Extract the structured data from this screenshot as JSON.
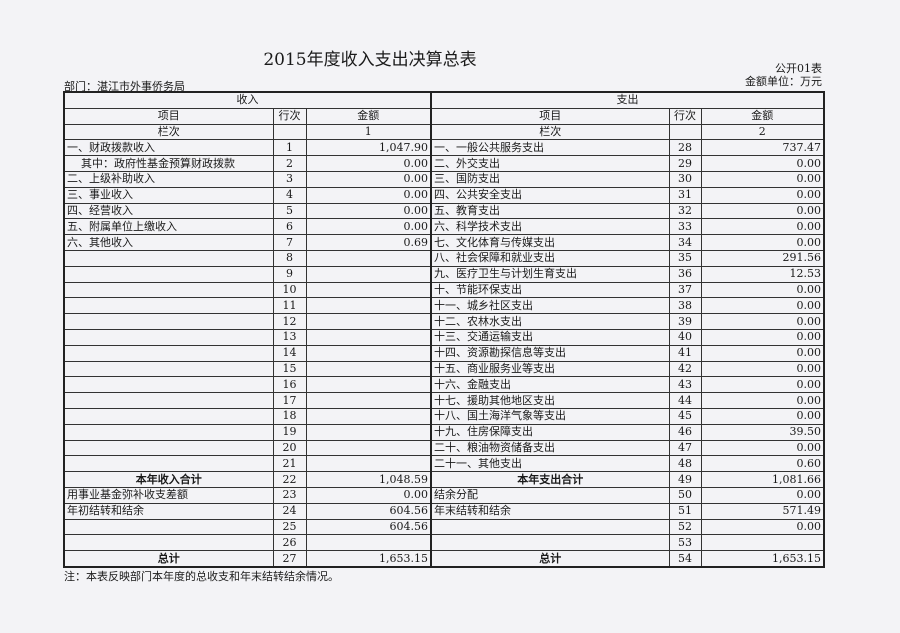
{
  "title": "2015年度收入支出决算总表",
  "form_no": "公开01表",
  "unit": "金额单位：万元",
  "department": "部门：湛江市外事侨务局",
  "header": {
    "income": "收入",
    "expense": "支出",
    "item": "项目",
    "row_no": "行次",
    "amount": "金额",
    "column_label": "栏次",
    "income_col": "1",
    "expense_col": "2"
  },
  "rows": [
    {
      "l_item": "一、财政拨款收入",
      "l_no": "1",
      "l_amt": "1,047.90",
      "r_item": "一、一般公共服务支出",
      "r_no": "28",
      "r_amt": "737.47"
    },
    {
      "l_item": "其中：政府性基金预算财政拨款",
      "l_no": "2",
      "l_amt": "0.00",
      "r_item": "二、外交支出",
      "r_no": "29",
      "r_amt": "0.00",
      "l_indent": true
    },
    {
      "l_item": "二、上级补助收入",
      "l_no": "3",
      "l_amt": "0.00",
      "r_item": "三、国防支出",
      "r_no": "30",
      "r_amt": "0.00"
    },
    {
      "l_item": "三、事业收入",
      "l_no": "4",
      "l_amt": "0.00",
      "r_item": "四、公共安全支出",
      "r_no": "31",
      "r_amt": "0.00"
    },
    {
      "l_item": "四、经营收入",
      "l_no": "5",
      "l_amt": "0.00",
      "r_item": "五、教育支出",
      "r_no": "32",
      "r_amt": "0.00"
    },
    {
      "l_item": "五、附属单位上缴收入",
      "l_no": "6",
      "l_amt": "0.00",
      "r_item": "六、科学技术支出",
      "r_no": "33",
      "r_amt": "0.00"
    },
    {
      "l_item": "六、其他收入",
      "l_no": "7",
      "l_amt": "0.69",
      "r_item": "七、文化体育与传媒支出",
      "r_no": "34",
      "r_amt": "0.00"
    },
    {
      "l_item": "",
      "l_no": "8",
      "l_amt": "",
      "r_item": "八、社会保障和就业支出",
      "r_no": "35",
      "r_amt": "291.56"
    },
    {
      "l_item": "",
      "l_no": "9",
      "l_amt": "",
      "r_item": "九、医疗卫生与计划生育支出",
      "r_no": "36",
      "r_amt": "12.53"
    },
    {
      "l_item": "",
      "l_no": "10",
      "l_amt": "",
      "r_item": "十、节能环保支出",
      "r_no": "37",
      "r_amt": "0.00"
    },
    {
      "l_item": "",
      "l_no": "11",
      "l_amt": "",
      "r_item": "十一、城乡社区支出",
      "r_no": "38",
      "r_amt": "0.00"
    },
    {
      "l_item": "",
      "l_no": "12",
      "l_amt": "",
      "r_item": "十二、农林水支出",
      "r_no": "39",
      "r_amt": "0.00"
    },
    {
      "l_item": "",
      "l_no": "13",
      "l_amt": "",
      "r_item": "十三、交通运输支出",
      "r_no": "40",
      "r_amt": "0.00"
    },
    {
      "l_item": "",
      "l_no": "14",
      "l_amt": "",
      "r_item": "十四、资源勘探信息等支出",
      "r_no": "41",
      "r_amt": "0.00"
    },
    {
      "l_item": "",
      "l_no": "15",
      "l_amt": "",
      "r_item": "十五、商业服务业等支出",
      "r_no": "42",
      "r_amt": "0.00"
    },
    {
      "l_item": "",
      "l_no": "16",
      "l_amt": "",
      "r_item": "十六、金融支出",
      "r_no": "43",
      "r_amt": "0.00"
    },
    {
      "l_item": "",
      "l_no": "17",
      "l_amt": "",
      "r_item": "十七、援助其他地区支出",
      "r_no": "44",
      "r_amt": "0.00"
    },
    {
      "l_item": "",
      "l_no": "18",
      "l_amt": "",
      "r_item": "十八、国土海洋气象等支出",
      "r_no": "45",
      "r_amt": "0.00"
    },
    {
      "l_item": "",
      "l_no": "19",
      "l_amt": "",
      "r_item": "十九、住房保障支出",
      "r_no": "46",
      "r_amt": "39.50"
    },
    {
      "l_item": "",
      "l_no": "20",
      "l_amt": "",
      "r_item": "二十、粮油物资储备支出",
      "r_no": "47",
      "r_amt": "0.00"
    },
    {
      "l_item": "",
      "l_no": "21",
      "l_amt": "",
      "r_item": "二十一、其他支出",
      "r_no": "48",
      "r_amt": "0.60"
    },
    {
      "l_item": "本年收入合计",
      "l_no": "22",
      "l_amt": "1,048.59",
      "r_item": "本年支出合计",
      "r_no": "49",
      "r_amt": "1,081.66",
      "total": true
    },
    {
      "l_item": "用事业基金弥补收支差额",
      "l_no": "23",
      "l_amt": "0.00",
      "r_item": "结余分配",
      "r_no": "50",
      "r_amt": "0.00"
    },
    {
      "l_item": "年初结转和结余",
      "l_no": "24",
      "l_amt": "604.56",
      "r_item": "年末结转和结余",
      "r_no": "51",
      "r_amt": "571.49"
    },
    {
      "l_item": "",
      "l_no": "25",
      "l_amt": "604.56",
      "r_item": "",
      "r_no": "52",
      "r_amt": "0.00"
    },
    {
      "l_item": "",
      "l_no": "26",
      "l_amt": "",
      "r_item": "",
      "r_no": "53",
      "r_amt": ""
    },
    {
      "l_item": "总计",
      "l_no": "27",
      "l_amt": "1,653.15",
      "r_item": "总计",
      "r_no": "54",
      "r_amt": "1,653.15",
      "total": true
    }
  ],
  "note": "注：本表反映部门本年度的总收支和年末结转结余情况。"
}
